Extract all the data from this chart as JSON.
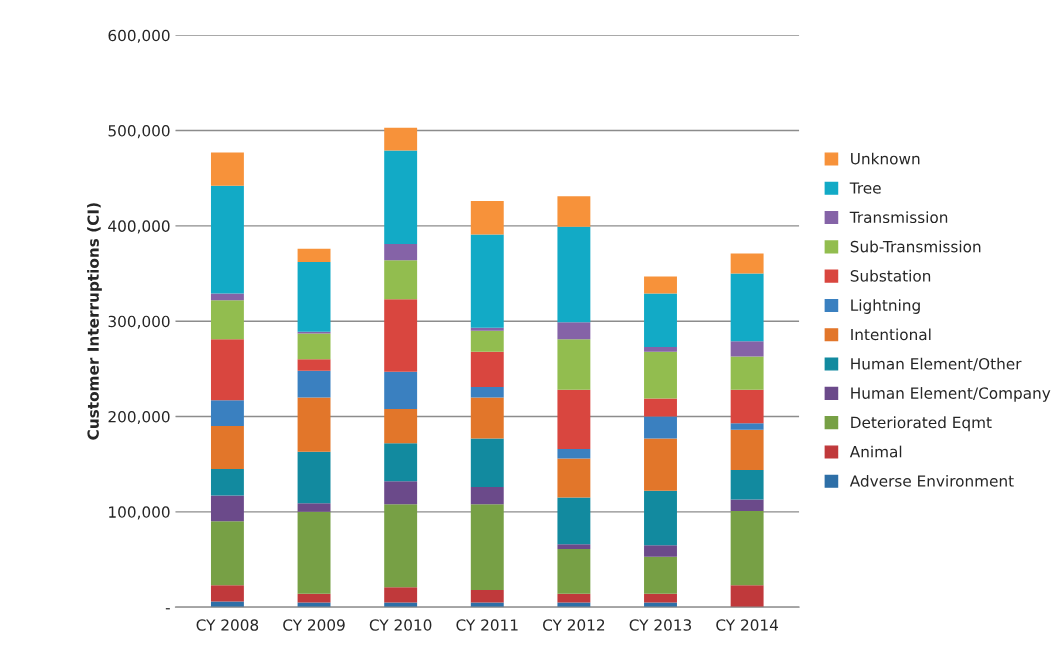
{
  "chart_data": {
    "type": "bar",
    "stacked": true,
    "ylabel": "Customer Interruptions (CI)",
    "categories": [
      "CY 2008",
      "CY 2009",
      "CY 2010",
      "CY 2011",
      "CY 2012",
      "CY 2013",
      "CY 2014"
    ],
    "series": [
      {
        "name": "Adverse Environment",
        "color": "#2e6fa7",
        "values": [
          6000,
          5000,
          5000,
          5000,
          5000,
          5000,
          null
        ]
      },
      {
        "name": "Animal",
        "color": "#c0393b",
        "values": [
          17000,
          9000,
          16000,
          13000,
          9000,
          9000,
          23000
        ]
      },
      {
        "name": "Deteriorated Eqmt",
        "color": "#77a045",
        "values": [
          67000,
          86000,
          87000,
          90000,
          47000,
          39000,
          78000
        ]
      },
      {
        "name": "Human Element/Company",
        "color": "#6b4a8a",
        "values": [
          27000,
          9000,
          24000,
          18000,
          5000,
          12000,
          12000
        ]
      },
      {
        "name": "Human Element/Other",
        "color": "#128a9f",
        "values": [
          28000,
          54000,
          40000,
          51000,
          49000,
          57000,
          31000
        ]
      },
      {
        "name": "Intentional",
        "color": "#e2762a",
        "values": [
          45000,
          57000,
          36000,
          43000,
          41000,
          55000,
          42000
        ]
      },
      {
        "name": "Lightning",
        "color": "#3a80c0",
        "values": [
          27000,
          28000,
          39000,
          11000,
          10000,
          23000,
          7000
        ]
      },
      {
        "name": "Substation",
        "color": "#d9463f",
        "values": [
          64000,
          12000,
          76000,
          37000,
          62000,
          19000,
          35000
        ]
      },
      {
        "name": "Sub-Transmission",
        "color": "#92bd4f",
        "values": [
          41000,
          27000,
          41000,
          22000,
          53000,
          49000,
          35000
        ]
      },
      {
        "name": "Transmission",
        "color": "#8563a7",
        "values": [
          7000,
          2000,
          17000,
          3000,
          18000,
          5000,
          16000
        ]
      },
      {
        "name": "Tree",
        "color": "#12aac6",
        "values": [
          113000,
          73000,
          98000,
          98000,
          100000,
          56000,
          71000
        ]
      },
      {
        "name": "Unknown",
        "color": "#f7923a",
        "values": [
          35000,
          14000,
          24000,
          35000,
          32000,
          18000,
          21000
        ]
      }
    ],
    "ylim": [
      0,
      600000
    ],
    "yticks": [
      {
        "value": 0,
        "label": "-"
      },
      {
        "value": 100000,
        "label": "100,000"
      },
      {
        "value": 200000,
        "label": "200,000"
      },
      {
        "value": 300000,
        "label": "300,000"
      },
      {
        "value": 400000,
        "label": "400,000"
      },
      {
        "value": 500000,
        "label": "500,000"
      },
      {
        "value": 600000,
        "label": "600,000"
      }
    ],
    "grid": "y",
    "legend": "right"
  }
}
